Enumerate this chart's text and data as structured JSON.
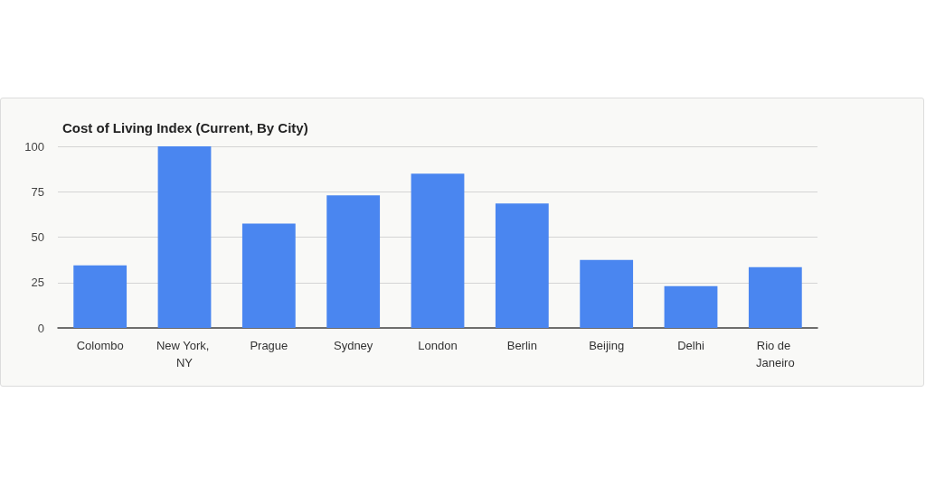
{
  "chart_data": {
    "type": "bar",
    "title": "Cost of Living Index (Current, By City)",
    "categories": [
      "Colombo",
      "New York, NY",
      "Prague",
      "Sydney",
      "London",
      "Berlin",
      "Beijing",
      "Delhi",
      "Rio de Janeiro"
    ],
    "values": [
      34.5,
      100,
      57.5,
      73,
      85,
      68.5,
      37.5,
      23,
      33.5
    ],
    "color": "#4a86f0",
    "ylim": [
      0,
      100
    ],
    "yticks": [
      0,
      25,
      50,
      75,
      100
    ],
    "grid": "y"
  }
}
